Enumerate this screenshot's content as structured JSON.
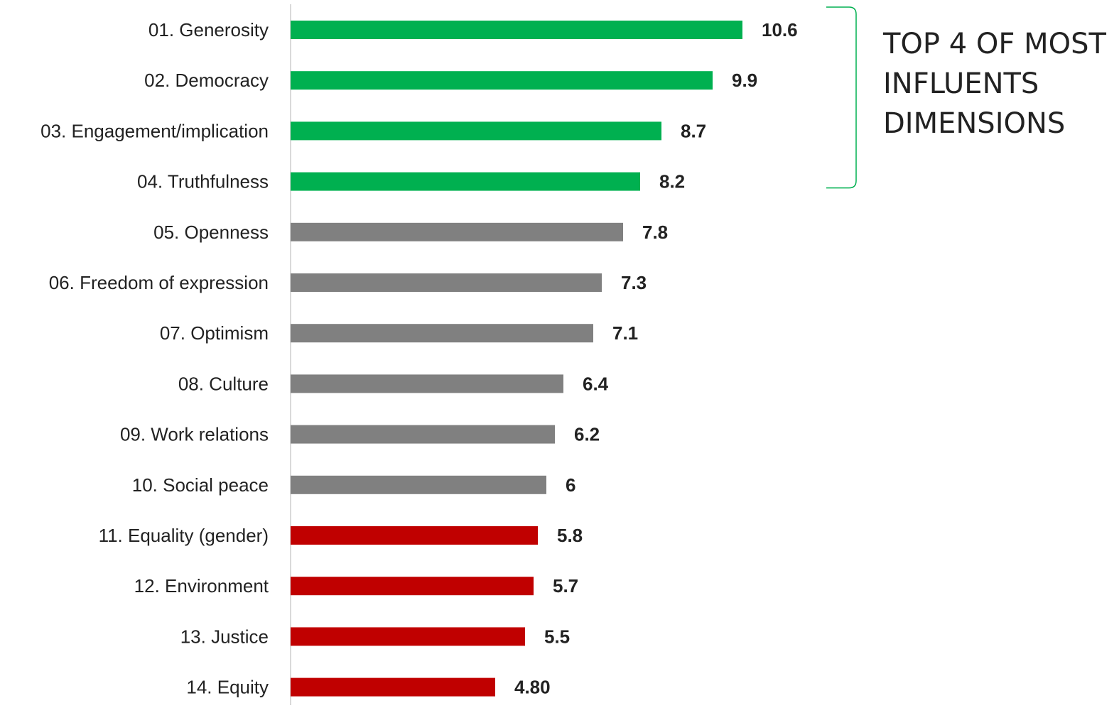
{
  "chart_data": {
    "type": "bar",
    "orientation": "horizontal",
    "categories": [
      "01. Generosity",
      "02. Democracy",
      "03. Engagement/implication",
      "04. Truthfulness",
      "05. Openness",
      "06. Freedom of expression",
      "07. Optimism",
      "08. Culture",
      "09. Work relations",
      "10. Social peace",
      "11. Equality (gender)",
      "12. Environment",
      "13. Justice",
      "14. Equity"
    ],
    "values": [
      10.6,
      9.9,
      8.7,
      8.2,
      7.8,
      7.3,
      7.1,
      6.4,
      6.2,
      6.0,
      5.8,
      5.7,
      5.5,
      4.8
    ],
    "value_labels": [
      "10.6",
      "9.9",
      "8.7",
      "8.2",
      "7.8",
      "7.3",
      "7.1",
      "6.4",
      "6.2",
      "6",
      "5.8",
      "5.7",
      "5.5",
      "4.80"
    ],
    "bar_colors": [
      "#00b050",
      "#00b050",
      "#00b050",
      "#00b050",
      "#808080",
      "#808080",
      "#808080",
      "#808080",
      "#808080",
      "#808080",
      "#c00000",
      "#c00000",
      "#c00000",
      "#c00000"
    ],
    "xlim": [
      0,
      11
    ],
    "grid": false,
    "annotation": {
      "text_lines": [
        "TOP 4 OF MOST",
        "INFLUENTS",
        "DIMENSIONS"
      ],
      "bracket_color": "#00b050",
      "spans_categories": [
        0,
        3
      ]
    }
  }
}
